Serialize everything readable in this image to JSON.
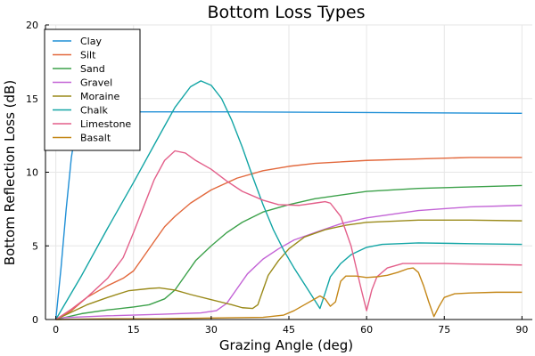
{
  "chart_data": {
    "type": "line",
    "title": "Bottom Loss Types",
    "xlabel": "Grazing Angle (deg)",
    "ylabel": "Bottom Reflection Loss (dB)",
    "xlim": [
      -2,
      92
    ],
    "ylim": [
      0,
      20
    ],
    "xticks": [
      0,
      15,
      30,
      45,
      60,
      75,
      90
    ],
    "yticks": [
      0,
      5,
      10,
      15,
      20
    ],
    "xtick_labels": [
      "0",
      "15",
      "30",
      "45",
      "60",
      "75",
      "90"
    ],
    "ytick_labels": [
      "0",
      "5",
      "10",
      "15",
      "20"
    ],
    "grid": true,
    "legend_position": "top-left",
    "series": [
      {
        "name": "Clay",
        "color": "#1f8fd6",
        "points": [
          [
            0,
            0
          ],
          [
            1,
            3.5
          ],
          [
            2,
            7.5
          ],
          [
            3,
            11
          ],
          [
            4,
            13.2
          ],
          [
            5,
            13.9
          ],
          [
            6,
            14.05
          ],
          [
            10,
            14.1
          ],
          [
            30,
            14.1
          ],
          [
            60,
            14.05
          ],
          [
            90,
            14.0
          ]
        ]
      },
      {
        "name": "Silt",
        "color": "#e2683c",
        "points": [
          [
            0,
            0
          ],
          [
            3,
            0.6
          ],
          [
            6,
            1.5
          ],
          [
            10,
            2.3
          ],
          [
            13,
            2.8
          ],
          [
            15,
            3.3
          ],
          [
            17,
            4.3
          ],
          [
            19,
            5.3
          ],
          [
            21,
            6.3
          ],
          [
            23,
            7.0
          ],
          [
            26,
            7.9
          ],
          [
            30,
            8.8
          ],
          [
            35,
            9.6
          ],
          [
            40,
            10.1
          ],
          [
            45,
            10.4
          ],
          [
            50,
            10.6
          ],
          [
            60,
            10.8
          ],
          [
            70,
            10.9
          ],
          [
            80,
            11.0
          ],
          [
            90,
            11.0
          ]
        ]
      },
      {
        "name": "Sand",
        "color": "#3ca14a",
        "points": [
          [
            0,
            0
          ],
          [
            5,
            0.4
          ],
          [
            10,
            0.65
          ],
          [
            15,
            0.85
          ],
          [
            18,
            1.0
          ],
          [
            21,
            1.4
          ],
          [
            23,
            2.0
          ],
          [
            25,
            3.0
          ],
          [
            27,
            4.0
          ],
          [
            30,
            5.0
          ],
          [
            33,
            5.9
          ],
          [
            36,
            6.6
          ],
          [
            40,
            7.3
          ],
          [
            45,
            7.8
          ],
          [
            50,
            8.2
          ],
          [
            60,
            8.7
          ],
          [
            70,
            8.9
          ],
          [
            80,
            9.0
          ],
          [
            90,
            9.1
          ]
        ]
      },
      {
        "name": "Gravel",
        "color": "#c364d6",
        "points": [
          [
            0,
            0.1
          ],
          [
            10,
            0.25
          ],
          [
            20,
            0.35
          ],
          [
            28,
            0.45
          ],
          [
            31,
            0.6
          ],
          [
            33,
            1.1
          ],
          [
            35,
            2.1
          ],
          [
            37,
            3.1
          ],
          [
            40,
            4.1
          ],
          [
            43,
            4.8
          ],
          [
            46,
            5.4
          ],
          [
            50,
            5.9
          ],
          [
            55,
            6.5
          ],
          [
            60,
            6.9
          ],
          [
            70,
            7.4
          ],
          [
            80,
            7.65
          ],
          [
            90,
            7.75
          ]
        ]
      },
      {
        "name": "Moraine",
        "color": "#9a8a1a",
        "points": [
          [
            0,
            0
          ],
          [
            3,
            0.5
          ],
          [
            6,
            1.0
          ],
          [
            10,
            1.5
          ],
          [
            14,
            1.95
          ],
          [
            18,
            2.1
          ],
          [
            20,
            2.15
          ],
          [
            23,
            2.0
          ],
          [
            26,
            1.7
          ],
          [
            30,
            1.35
          ],
          [
            34,
            1.0
          ],
          [
            36,
            0.8
          ],
          [
            38,
            0.75
          ],
          [
            39,
            1.0
          ],
          [
            40,
            2.0
          ],
          [
            41,
            3.0
          ],
          [
            43,
            4.0
          ],
          [
            45,
            4.8
          ],
          [
            48,
            5.6
          ],
          [
            52,
            6.1
          ],
          [
            56,
            6.4
          ],
          [
            60,
            6.6
          ],
          [
            70,
            6.75
          ],
          [
            80,
            6.75
          ],
          [
            90,
            6.7
          ]
        ]
      },
      {
        "name": "Chalk",
        "color": "#12a5a5",
        "points": [
          [
            0,
            0
          ],
          [
            5,
            3.0
          ],
          [
            10,
            6.2
          ],
          [
            15,
            9.3
          ],
          [
            20,
            12.5
          ],
          [
            23,
            14.4
          ],
          [
            26,
            15.8
          ],
          [
            28,
            16.2
          ],
          [
            30,
            15.9
          ],
          [
            32,
            15.0
          ],
          [
            34,
            13.5
          ],
          [
            36,
            11.7
          ],
          [
            38,
            9.7
          ],
          [
            40,
            7.8
          ],
          [
            42,
            6.1
          ],
          [
            44,
            4.7
          ],
          [
            46,
            3.5
          ],
          [
            48,
            2.4
          ],
          [
            50,
            1.3
          ],
          [
            51,
            0.75
          ],
          [
            52,
            1.8
          ],
          [
            53,
            2.9
          ],
          [
            55,
            3.8
          ],
          [
            57,
            4.4
          ],
          [
            60,
            4.9
          ],
          [
            63,
            5.1
          ],
          [
            70,
            5.2
          ],
          [
            80,
            5.15
          ],
          [
            90,
            5.1
          ]
        ]
      },
      {
        "name": "Limestone",
        "color": "#e35f8a",
        "points": [
          [
            0,
            0
          ],
          [
            3,
            0.7
          ],
          [
            6,
            1.5
          ],
          [
            10,
            2.8
          ],
          [
            13,
            4.2
          ],
          [
            15,
            5.9
          ],
          [
            17,
            7.7
          ],
          [
            19,
            9.5
          ],
          [
            21,
            10.8
          ],
          [
            23,
            11.45
          ],
          [
            25,
            11.3
          ],
          [
            27,
            10.8
          ],
          [
            30,
            10.2
          ],
          [
            33,
            9.4
          ],
          [
            36,
            8.7
          ],
          [
            40,
            8.1
          ],
          [
            43,
            7.8
          ],
          [
            47,
            7.75
          ],
          [
            50,
            7.9
          ],
          [
            52,
            8.0
          ],
          [
            53,
            7.9
          ],
          [
            55,
            7.0
          ],
          [
            57,
            5.0
          ],
          [
            59,
            2.0
          ],
          [
            60,
            0.6
          ],
          [
            61,
            2.0
          ],
          [
            62,
            2.9
          ],
          [
            64,
            3.5
          ],
          [
            67,
            3.8
          ],
          [
            75,
            3.8
          ],
          [
            90,
            3.7
          ]
        ]
      },
      {
        "name": "Basalt",
        "color": "#c48718",
        "points": [
          [
            0,
            0
          ],
          [
            10,
            0.05
          ],
          [
            20,
            0.05
          ],
          [
            30,
            0.1
          ],
          [
            40,
            0.15
          ],
          [
            44,
            0.3
          ],
          [
            46,
            0.6
          ],
          [
            48,
            1.0
          ],
          [
            50,
            1.4
          ],
          [
            51,
            1.6
          ],
          [
            52,
            1.4
          ],
          [
            53,
            0.9
          ],
          [
            54,
            1.2
          ],
          [
            55,
            2.6
          ],
          [
            56,
            2.95
          ],
          [
            58,
            2.95
          ],
          [
            60,
            2.85
          ],
          [
            62,
            2.9
          ],
          [
            64,
            3.0
          ],
          [
            66,
            3.2
          ],
          [
            68,
            3.45
          ],
          [
            69,
            3.5
          ],
          [
            70,
            3.2
          ],
          [
            71,
            2.3
          ],
          [
            72,
            1.2
          ],
          [
            73,
            0.2
          ],
          [
            74,
            0.9
          ],
          [
            75,
            1.5
          ],
          [
            77,
            1.75
          ],
          [
            80,
            1.8
          ],
          [
            85,
            1.85
          ],
          [
            90,
            1.85
          ]
        ]
      }
    ]
  }
}
